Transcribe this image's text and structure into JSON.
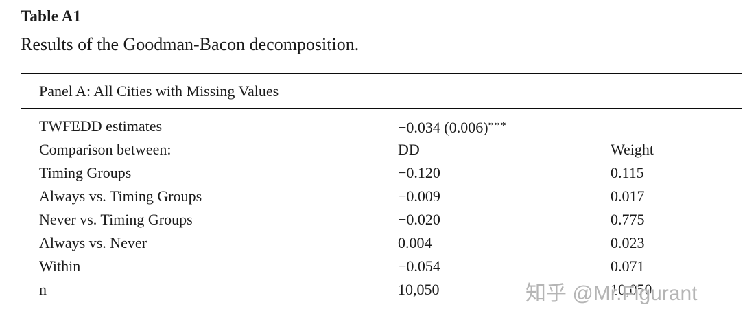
{
  "colors": {
    "background": "#ffffff",
    "text": "#1b1b1b",
    "rule": "#0c0c0c",
    "watermark": "#a8a8a8"
  },
  "table": {
    "label": "Table A1",
    "caption": "Results of the Goodman-Bacon decomposition.",
    "panel_header": "Panel A: All Cities with Missing Values",
    "columns": [
      "",
      "DD",
      "Weight"
    ],
    "rows": [
      {
        "label": "TWFEDD estimates",
        "dd": "−0.034 (0.006)",
        "stars": "***",
        "weight": ""
      },
      {
        "label": "Comparison between:",
        "dd": "DD",
        "weight": "Weight"
      },
      {
        "label": "Timing Groups",
        "dd": "−0.120",
        "weight": "0.115"
      },
      {
        "label": "Always vs. Timing Groups",
        "dd": "−0.009",
        "weight": "0.017"
      },
      {
        "label": "Never vs. Timing Groups",
        "dd": "−0.020",
        "weight": "0.775"
      },
      {
        "label": "Always vs. Never",
        "dd": "0.004",
        "weight": "0.023"
      },
      {
        "label": "Within",
        "dd": "−0.054",
        "weight": "0.071"
      },
      {
        "label": "n",
        "dd": "10,050",
        "weight": "10,050"
      }
    ]
  },
  "watermark": {
    "text": "知乎 @Mr.Figurant"
  }
}
